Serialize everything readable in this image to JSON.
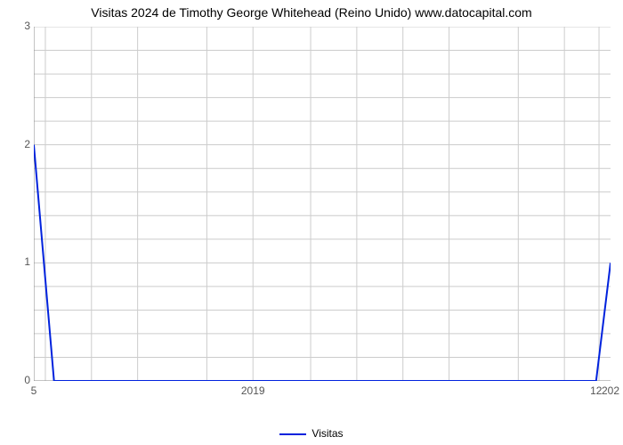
{
  "chart": {
    "type": "line",
    "title": "Visitas 2024 de Timothy George Whitehead (Reino Unido) www.datocapital.com",
    "title_fontsize": 14,
    "background_color": "#ffffff",
    "grid_color": "#cccccc",
    "axis_color": "#888888",
    "series": {
      "label": "Visitas",
      "color": "#0022dd",
      "line_width": 2,
      "x": [
        0,
        0.035,
        0.94,
        0.975,
        1.0
      ],
      "y": [
        2,
        0,
        0,
        0,
        1
      ]
    },
    "x_axis": {
      "min": 0,
      "max": 1,
      "grid_positions": [
        0.02,
        0.1,
        0.18,
        0.3,
        0.38,
        0.48,
        0.56,
        0.64,
        0.72,
        0.84,
        0.92,
        0.98
      ],
      "labels": [
        {
          "pos": 0.0,
          "text": "5"
        },
        {
          "pos": 0.38,
          "text": "2019"
        },
        {
          "pos": 0.975,
          "text": "12"
        },
        {
          "pos": 1.0,
          "text": "202"
        }
      ],
      "label_fontsize": 12,
      "label_color": "#555555"
    },
    "y_axis": {
      "min": 0,
      "max": 3,
      "ticks": [
        0,
        1,
        2,
        3
      ],
      "grid_step_minor": 0.2,
      "label_fontsize": 12,
      "label_color": "#555555"
    },
    "legend": {
      "position": "bottom",
      "fontsize": 12
    }
  }
}
